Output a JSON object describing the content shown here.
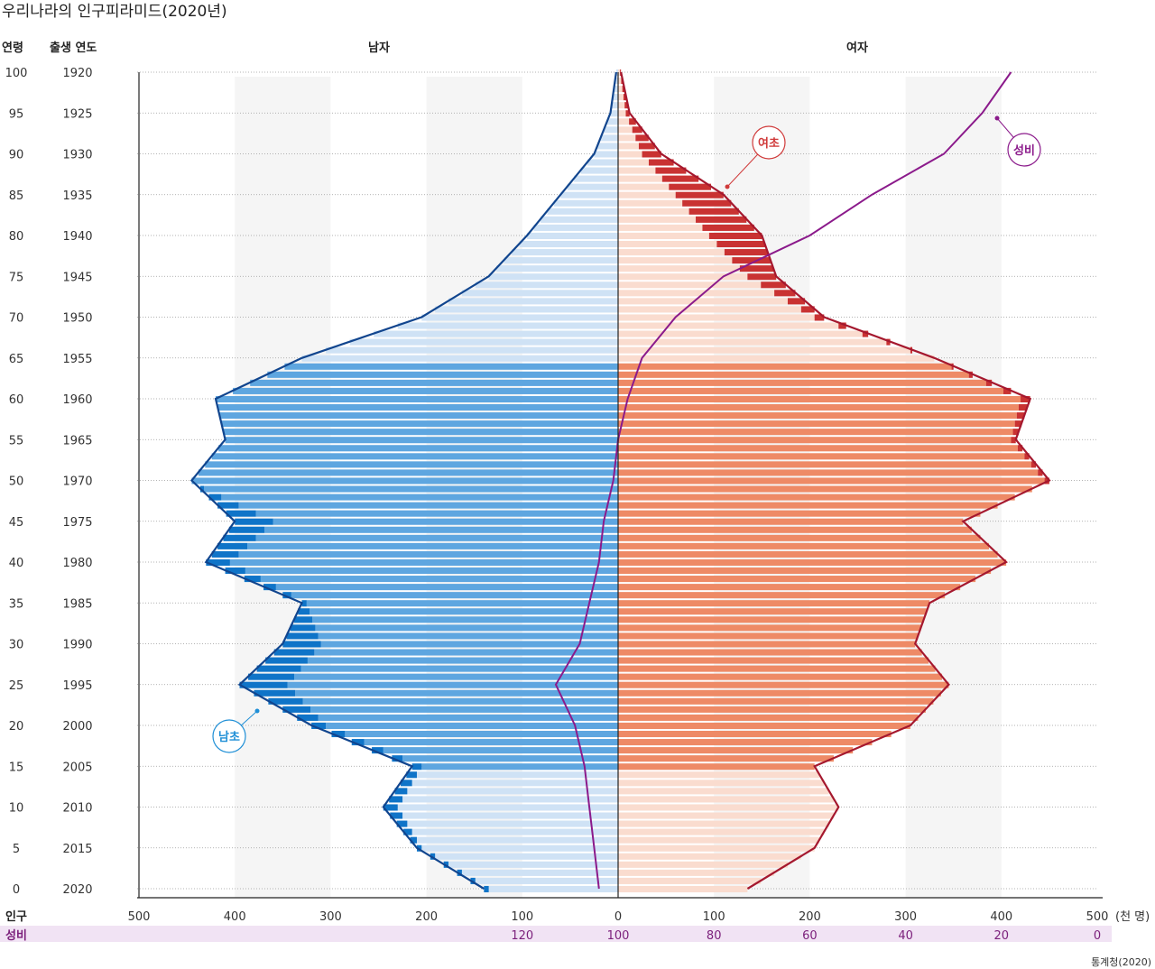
{
  "chart_data": {
    "type": "bar",
    "title": "우리나라의 인구피라미드(2020년)",
    "headers": {
      "age": "연령",
      "birth_year": "출생 연도",
      "male": "남자",
      "female": "여자"
    },
    "x_axis": {
      "label": "인구",
      "unit": "(천 명)",
      "ticks": [
        "500",
        "400",
        "300",
        "200",
        "100",
        "0",
        "100",
        "200",
        "300",
        "400",
        "500"
      ],
      "range_per_side": [
        0,
        500
      ]
    },
    "sex_ratio_axis": {
      "label": "성비",
      "ticks": [
        {
          "pos": 100,
          "label": "120"
        },
        {
          "pos": 0,
          "label": "100"
        },
        {
          "pos": -100,
          "label": "80"
        },
        {
          "pos": -200,
          "label": "60"
        },
        {
          "pos": -300,
          "label": "40"
        },
        {
          "pos": -400,
          "label": "20"
        },
        {
          "pos": -500,
          "label": "0"
        }
      ]
    },
    "age_labels": [
      {
        "age": 100,
        "age_label": "100",
        "year_label": "1920"
      },
      {
        "age": 95,
        "age_label": "95",
        "year_label": "1925"
      },
      {
        "age": 90,
        "age_label": "90",
        "year_label": "1930"
      },
      {
        "age": 85,
        "age_label": "85",
        "year_label": "1935"
      },
      {
        "age": 80,
        "age_label": "80",
        "year_label": "1940"
      },
      {
        "age": 75,
        "age_label": "75",
        "year_label": "1945"
      },
      {
        "age": 70,
        "age_label": "70",
        "year_label": "1950"
      },
      {
        "age": 65,
        "age_label": "65",
        "year_label": "1955"
      },
      {
        "age": 60,
        "age_label": "60",
        "year_label": "1960"
      },
      {
        "age": 55,
        "age_label": "55",
        "year_label": "1965"
      },
      {
        "age": 50,
        "age_label": "50",
        "year_label": "1970"
      },
      {
        "age": 45,
        "age_label": "45",
        "year_label": "1975"
      },
      {
        "age": 40,
        "age_label": "40",
        "year_label": "1980"
      },
      {
        "age": 35,
        "age_label": "35",
        "year_label": "1985"
      },
      {
        "age": 30,
        "age_label": "30",
        "year_label": "1990"
      },
      {
        "age": 25,
        "age_label": "25",
        "year_label": "1995"
      },
      {
        "age": 20,
        "age_label": "20",
        "year_label": "2000"
      },
      {
        "age": 15,
        "age_label": "15",
        "year_label": "2005"
      },
      {
        "age": 10,
        "age_label": "10",
        "year_label": "2010"
      },
      {
        "age": 5,
        "age_label": "5",
        "year_label": "2015"
      },
      {
        "age": 0,
        "age_label": "0",
        "year_label": "2020"
      }
    ],
    "male_ages": [
      0,
      5,
      10,
      15,
      20,
      25,
      30,
      35,
      40,
      45,
      50,
      55,
      60,
      65,
      70,
      75,
      80,
      85,
      90,
      95,
      100
    ],
    "male_population": [
      140,
      210,
      245,
      215,
      320,
      395,
      350,
      330,
      430,
      400,
      445,
      410,
      420,
      330,
      205,
      135,
      95,
      60,
      25,
      8,
      2
    ],
    "female_population": [
      135,
      205,
      230,
      205,
      305,
      345,
      310,
      325,
      405,
      360,
      450,
      415,
      430,
      330,
      215,
      165,
      150,
      110,
      45,
      12,
      3
    ],
    "sex_ratio": [
      104,
      105,
      106,
      107,
      109,
      113,
      108,
      106,
      104,
      103,
      101,
      100,
      98,
      95,
      88,
      78,
      60,
      47,
      32,
      24,
      18
    ],
    "annotations": {
      "male_excess": "남초",
      "female_excess": "여초",
      "sex_ratio": "성비"
    },
    "colors": {
      "male_bar": "#5ea6e0",
      "male_bar_light": "#cfe2f5",
      "male_excess": "#0f74c8",
      "female_bar": "#ee8a66",
      "female_bar_light": "#fadccf",
      "female_excess": "#c93232",
      "male_line": "#11458e",
      "female_line": "#a5182e",
      "sex_ratio_line": "#8b1a8b",
      "sex_ratio_band": "#f1e3f4"
    },
    "grid": true
  },
  "source": "통계청(2020)"
}
